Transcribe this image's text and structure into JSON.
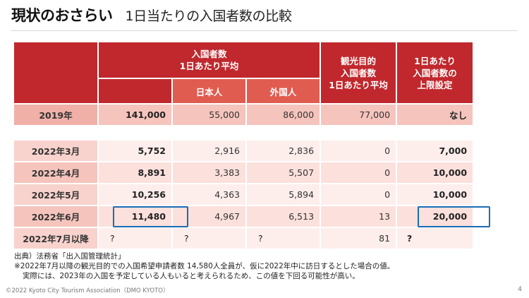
{
  "header": {
    "title_main": "現状のおさらい",
    "title_sub": "1日当たりの入国者数の比較"
  },
  "table": {
    "headers": {
      "entrants_daily_avg": "入国者数\n1日あたり平均",
      "japanese": "日本人",
      "foreigners": "外国人",
      "tourism_daily_avg": "観光目的\n入国者数\n1日あたり平均",
      "daily_cap": "1日あたり\n入国者数の\n上限設定"
    },
    "rows": [
      {
        "label": "2019年",
        "total": "141,000",
        "japanese": "55,000",
        "foreign": "86,000",
        "tourism": "77,000",
        "cap": "なし"
      },
      {
        "label": "2022年3月",
        "total": "5,752",
        "japanese": "2,916",
        "foreign": "2,836",
        "tourism": "0",
        "cap": "7,000"
      },
      {
        "label": "2022年4月",
        "total": "8,891",
        "japanese": "3,383",
        "foreign": "5,507",
        "tourism": "0",
        "cap": "10,000"
      },
      {
        "label": "2022年5月",
        "total": "10,256",
        "japanese": "4,363",
        "foreign": "5,894",
        "tourism": "0",
        "cap": "10,000"
      },
      {
        "label": "2022年6月",
        "total": "11,480",
        "japanese": "4,967",
        "foreign": "6,513",
        "tourism": "13",
        "cap": "20,000"
      },
      {
        "label": "2022年7月以降",
        "total": "?",
        "japanese": "?",
        "foreign": "?",
        "tourism": "81",
        "cap": "?"
      }
    ]
  },
  "notes": {
    "source": "出典）法務省「出入国管理統計」",
    "note1": "※2022年7月以降の観光目的での入国希望申請者数 14,580人全員が、仮に2022年中に訪日するとした場合の値。",
    "note2": "実際には、2023年の入国を予定している人もいると考えられるため、この値を下回る可能性が高い。"
  },
  "footer": {
    "copyright": "©2022 Kyoto City Tourism Association（DMO KYOTO）",
    "page_number": "4"
  },
  "colors": {
    "header_red": "#c0282d",
    "subheader_red": "#e05c50",
    "highlight_blue": "#1a6db5"
  }
}
